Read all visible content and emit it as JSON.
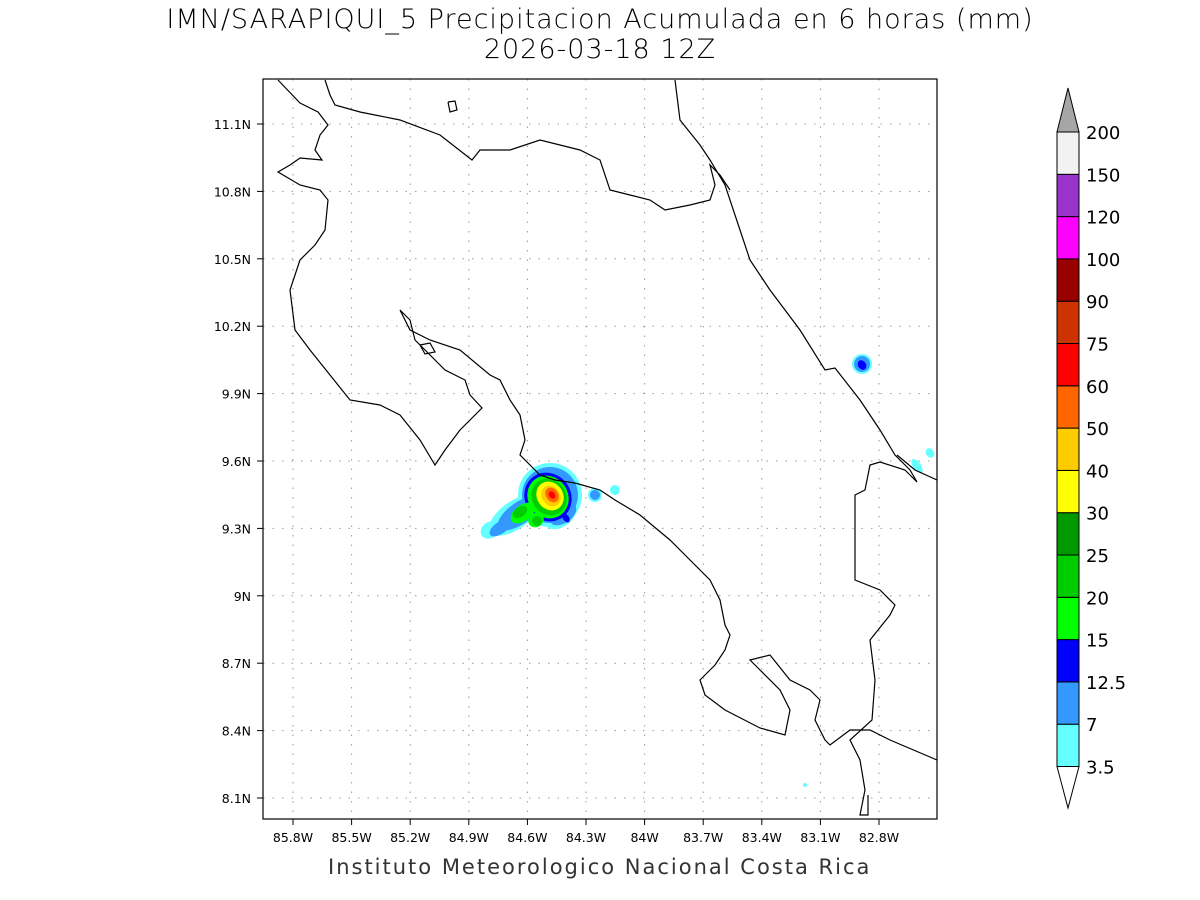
{
  "title": "IMN/SARAPIQUI_5 Precipitacion Acumulada en 6 horas (mm)",
  "subtitle": "2026-03-18 12Z",
  "footer": "Instituto Meteorologico Nacional Costa Rica",
  "map": {
    "region": "Costa Rica",
    "lon_ticks": [
      "85.8W",
      "85.5W",
      "85.2W",
      "84.9W",
      "84.6W",
      "84.3W",
      "84W",
      "83.7W",
      "83.4W",
      "83.1W",
      "82.8W"
    ],
    "lat_ticks": [
      "11.1N",
      "10.8N",
      "10.5N",
      "10.2N",
      "9.9N",
      "9.6N",
      "9.3N",
      "9N",
      "8.7N",
      "8.4N",
      "8.1N"
    ],
    "grid": "dotted"
  },
  "colorbar": {
    "units": "mm",
    "levels": [
      "3.5",
      "7",
      "12.5",
      "15",
      "20",
      "25",
      "30",
      "40",
      "50",
      "60",
      "75",
      "90",
      "100",
      "120",
      "150",
      "200"
    ],
    "colors": [
      "#66ffff",
      "#3399ff",
      "#0000ff",
      "#00ff00",
      "#00cc00",
      "#009900",
      "#ffff00",
      "#ffcc00",
      "#ff6600",
      "#ff0000",
      "#cc3300",
      "#990000",
      "#ff00ff",
      "#9933cc",
      "#f2f2f2"
    ],
    "over_color": "#a6a6a6",
    "under_color": "#ffffff"
  }
}
